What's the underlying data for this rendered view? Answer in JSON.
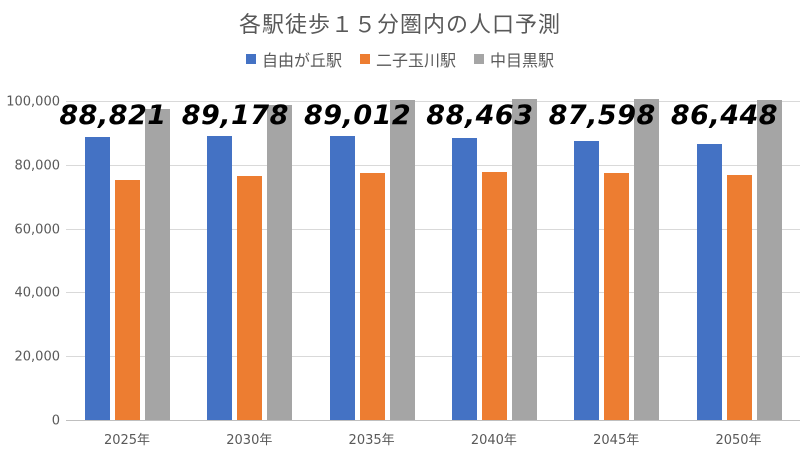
{
  "chart_data": {
    "type": "bar",
    "title": "各駅徒歩１５分圏内の人口予測",
    "categories": [
      "2025年",
      "2030年",
      "2035年",
      "2040年",
      "2045年",
      "2050年"
    ],
    "series": [
      {
        "name": "自由が丘駅",
        "color": "#4472C4",
        "values": [
          88821,
          89178,
          89012,
          88463,
          87598,
          86448
        ]
      },
      {
        "name": "二子玉川駅",
        "color": "#ED7D31",
        "values": [
          75200,
          76500,
          77300,
          77700,
          77300,
          76800
        ]
      },
      {
        "name": "中目黒駅",
        "color": "#A5A5A5",
        "values": [
          97400,
          98700,
          100300,
          100600,
          100600,
          100300
        ]
      }
    ],
    "data_labels": [
      "88,821",
      "89,178",
      "89,012",
      "88,463",
      "87,598",
      "86,448"
    ],
    "xlabel": "",
    "ylabel": "",
    "ylim": [
      0,
      100000
    ],
    "yticks": [
      "0",
      "20,000",
      "40,000",
      "60,000",
      "80,000",
      "100,000"
    ],
    "grid": true,
    "legend_position": "top"
  }
}
